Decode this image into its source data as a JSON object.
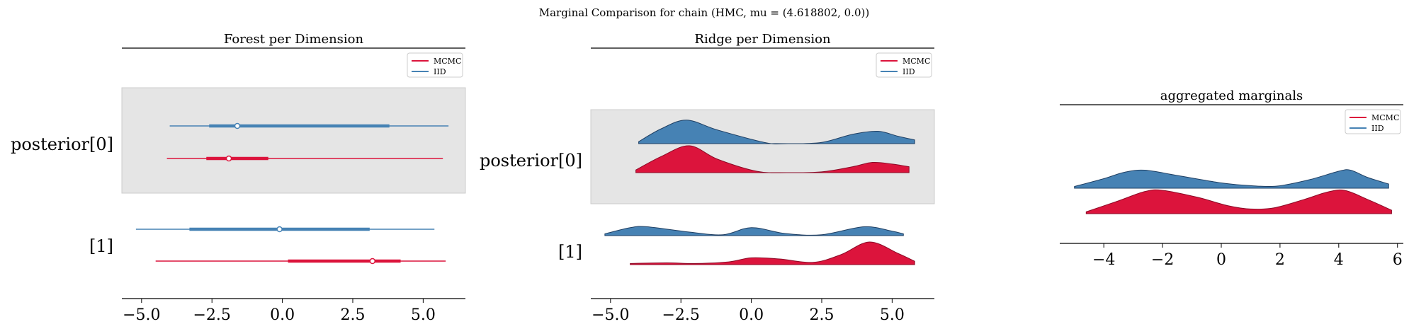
{
  "figure": {
    "suptitle": "Marginal Comparison for chain (HMC, mu = (4.618802, 0.0))"
  },
  "colors": {
    "mcmc": "#dc143c",
    "iid": "#4682b4",
    "highlight": "#e5e5e5"
  },
  "legend": {
    "items": [
      {
        "label": "MCMC",
        "color": "#dc143c"
      },
      {
        "label": "IID",
        "color": "#4682b4"
      }
    ]
  },
  "chart_data": [
    {
      "type": "forest",
      "title": "Forest per Dimension",
      "xlim": [
        -5.7,
        6.5
      ],
      "xticks": [
        -5.0,
        -2.5,
        0.0,
        2.5,
        5.0
      ],
      "xtick_labels": [
        "−5.0",
        "−2.5",
        "0.0",
        "2.5",
        "5.0"
      ],
      "row_labels": [
        "posterior[0]",
        "[1]"
      ],
      "highlighted_row": 0,
      "legend_position": "top-right",
      "rows": [
        {
          "label": "posterior[0]",
          "series": [
            {
              "name": "IID",
              "hdi_full": [
                -4.0,
                5.9
              ],
              "hdi_inner": [
                -2.6,
                3.8
              ],
              "point": -1.6
            },
            {
              "name": "MCMC",
              "hdi_full": [
                -4.1,
                5.7
              ],
              "hdi_inner": [
                -2.7,
                -0.5
              ],
              "point": -1.9
            }
          ]
        },
        {
          "label": "[1]",
          "series": [
            {
              "name": "IID",
              "hdi_full": [
                -5.2,
                5.4
              ],
              "hdi_inner": [
                -3.3,
                3.1
              ],
              "point": -0.1
            },
            {
              "name": "MCMC",
              "hdi_full": [
                -4.5,
                5.8
              ],
              "hdi_inner": [
                0.2,
                4.2
              ],
              "point": 3.2
            }
          ]
        }
      ]
    },
    {
      "type": "ridge",
      "title": "Ridge per Dimension",
      "xlim": [
        -5.7,
        6.5
      ],
      "xticks": [
        -5.0,
        -2.5,
        0.0,
        2.5,
        5.0
      ],
      "xtick_labels": [
        "−5.0",
        "−2.5",
        "0.0",
        "2.5",
        "5.0"
      ],
      "row_labels": [
        "posterior[0]",
        "[1]"
      ],
      "highlighted_row": 0,
      "legend_position": "top-right",
      "rows": [
        {
          "label": "posterior[0]",
          "series": [
            {
              "name": "IID",
              "x": [
                -4.0,
                -3.2,
                -2.3,
                -1.2,
                0.5,
                1.3,
                2.5,
                3.6,
                4.5,
                5.2,
                5.8
              ],
              "density": [
                0.08,
                0.6,
                0.95,
                0.55,
                0.04,
                0.0,
                0.05,
                0.38,
                0.5,
                0.3,
                0.15
              ]
            },
            {
              "name": "MCMC",
              "x": [
                -4.1,
                -3.2,
                -2.2,
                -1.2,
                0.2,
                1.3,
                2.5,
                3.6,
                4.3,
                5.0,
                5.6
              ],
              "density": [
                0.1,
                0.6,
                1.0,
                0.5,
                0.05,
                0.0,
                0.03,
                0.22,
                0.38,
                0.32,
                0.22
              ]
            }
          ]
        },
        {
          "label": "[1]",
          "series": [
            {
              "name": "IID",
              "x": [
                -5.2,
                -4.3,
                -3.7,
                -2.2,
                -1.0,
                0.0,
                1.2,
                2.5,
                4.0,
                5.0,
                5.4
              ],
              "density": [
                0.1,
                0.45,
                0.5,
                0.2,
                0.05,
                0.45,
                0.12,
                0.05,
                0.5,
                0.25,
                0.1
              ]
            },
            {
              "name": "MCMC",
              "x": [
                -4.3,
                -3.0,
                -2.0,
                -0.8,
                0.0,
                1.0,
                2.2,
                3.2,
                4.2,
                5.2,
                5.8
              ],
              "density": [
                0.05,
                0.08,
                0.05,
                0.12,
                0.3,
                0.25,
                0.1,
                0.45,
                1.0,
                0.5,
                0.15
              ]
            }
          ]
        }
      ]
    },
    {
      "type": "ridge",
      "title": "aggregated marginals",
      "xlim": [
        -5.5,
        6.2
      ],
      "xticks": [
        -4,
        -2,
        0,
        2,
        4,
        6
      ],
      "xtick_labels": [
        "−4",
        "−2",
        "0",
        "2",
        "4",
        "6"
      ],
      "legend_position": "top-right",
      "series": [
        {
          "name": "IID",
          "x": [
            -5.0,
            -4.0,
            -3.3,
            -2.6,
            -1.5,
            0.0,
            1.0,
            1.9,
            3.0,
            4.0,
            4.4,
            5.0,
            5.7
          ],
          "density": [
            0.08,
            0.45,
            0.75,
            0.85,
            0.6,
            0.25,
            0.12,
            0.1,
            0.4,
            0.8,
            0.85,
            0.5,
            0.2
          ]
        },
        {
          "name": "MCMC",
          "x": [
            -4.6,
            -3.5,
            -2.6,
            -2.0,
            -0.8,
            0.2,
            1.0,
            1.8,
            2.8,
            3.6,
            4.2,
            5.0,
            5.8
          ],
          "density": [
            0.08,
            0.55,
            0.95,
            1.0,
            0.7,
            0.35,
            0.2,
            0.25,
            0.6,
            0.92,
            1.0,
            0.6,
            0.15
          ]
        }
      ]
    }
  ]
}
